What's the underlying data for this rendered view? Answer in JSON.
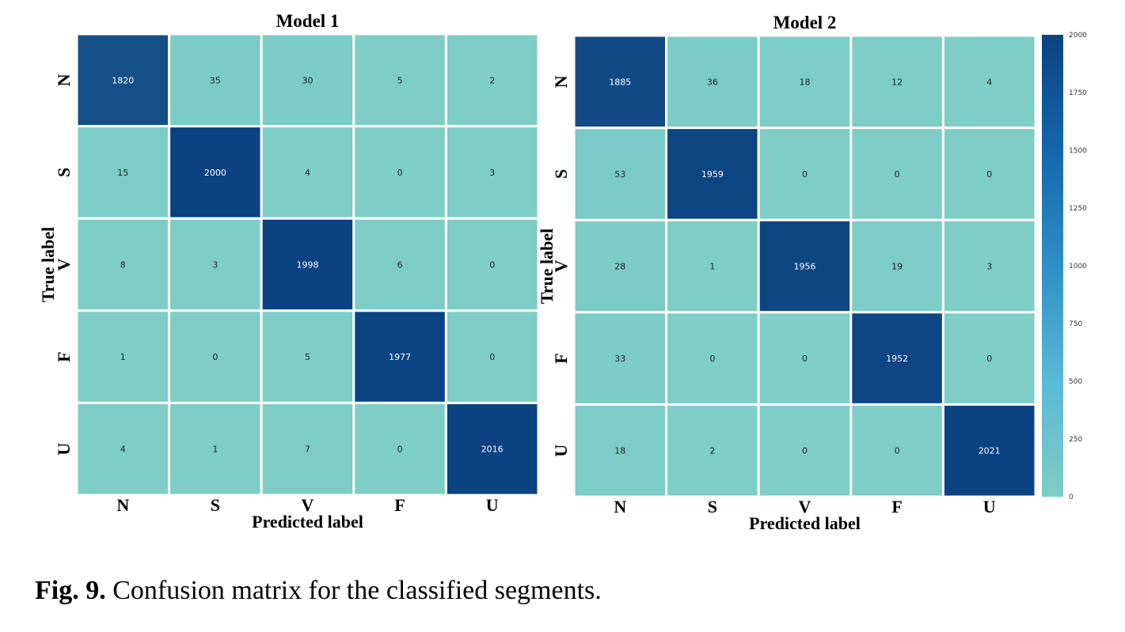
{
  "chart_data": [
    {
      "type": "heatmap",
      "title": "Model 1",
      "xlabel": "Predicted label",
      "ylabel": "True label",
      "x_categories": [
        "N",
        "S",
        "V",
        "F",
        "U"
      ],
      "y_categories": [
        "N",
        "S",
        "V",
        "F",
        "U"
      ],
      "values": [
        [
          1820,
          35,
          30,
          5,
          2
        ],
        [
          15,
          2000,
          4,
          0,
          3
        ],
        [
          8,
          3,
          1998,
          6,
          0
        ],
        [
          1,
          0,
          5,
          1977,
          0
        ],
        [
          4,
          1,
          7,
          0,
          2016
        ]
      ]
    },
    {
      "type": "heatmap",
      "title": "Model 2",
      "xlabel": "Predicted label",
      "ylabel": "True label",
      "x_categories": [
        "N",
        "S",
        "V",
        "F",
        "U"
      ],
      "y_categories": [
        "N",
        "S",
        "V",
        "F",
        "U"
      ],
      "values": [
        [
          1885,
          36,
          18,
          12,
          4
        ],
        [
          53,
          1959,
          0,
          0,
          0
        ],
        [
          28,
          1,
          1956,
          19,
          3
        ],
        [
          33,
          0,
          0,
          1952,
          0
        ],
        [
          18,
          2,
          0,
          0,
          2021
        ]
      ]
    }
  ],
  "colorbar": {
    "range": [
      0,
      2000
    ],
    "ticks": [
      "0",
      "250",
      "500",
      "750",
      "1000",
      "1250",
      "1500",
      "1750",
      "2000"
    ],
    "color_low": "#7ecdc6",
    "color_high": "#0b4282"
  },
  "caption": {
    "label": "Fig. 9.",
    "text": " Confusion matrix for the classified segments."
  }
}
